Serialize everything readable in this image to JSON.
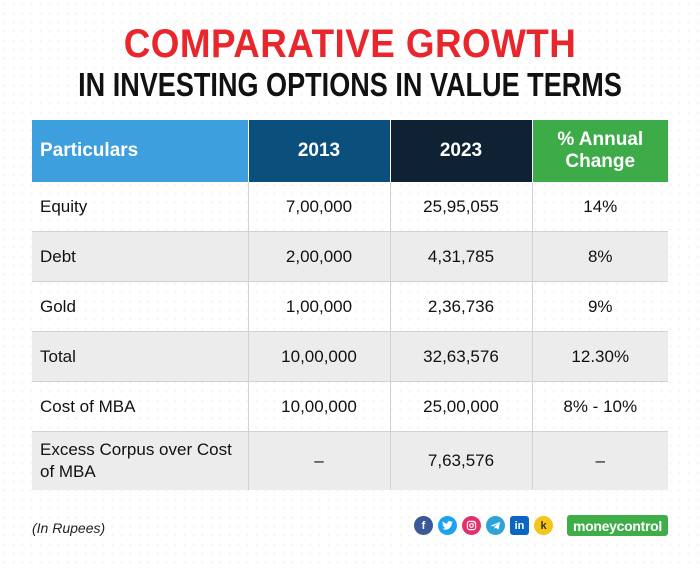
{
  "title": {
    "line1": "COMPARATIVE GROWTH",
    "line2": "IN INVESTING OPTIONS IN VALUE TERMS"
  },
  "colors": {
    "title_red": "#e8262b",
    "header_particulars": "#3d9fdd",
    "header_2013": "#0b4f7c",
    "header_2023": "#0e2233",
    "header_change": "#3dab48"
  },
  "chart_data": {
    "type": "table",
    "columns": [
      "Particulars",
      "2013",
      "2023",
      "% Annual Change"
    ],
    "rows": [
      [
        "Equity",
        "7,00,000",
        "25,95,055",
        "14%"
      ],
      [
        "Debt",
        "2,00,000",
        "4,31,785",
        "8%"
      ],
      [
        "Gold",
        "1,00,000",
        "2,36,736",
        "9%"
      ],
      [
        "Total",
        "10,00,000",
        "32,63,576",
        "12.30%"
      ],
      [
        "Cost of MBA",
        "10,00,000",
        "25,00,000",
        "8% - 10%"
      ],
      [
        "Excess Corpus over Cost of MBA",
        "–",
        "7,63,576",
        "–"
      ]
    ]
  },
  "table": {
    "header": {
      "col0": "Particulars",
      "col1": "2013",
      "col2": "2023",
      "col3": "% Annual Change"
    },
    "rows": [
      {
        "label": "Equity",
        "y2013": "7,00,000",
        "y2023": "25,95,055",
        "change": "14%"
      },
      {
        "label": "Debt",
        "y2013": "2,00,000",
        "y2023": "4,31,785",
        "change": "8%"
      },
      {
        "label": "Gold",
        "y2013": "1,00,000",
        "y2023": "2,36,736",
        "change": "9%"
      },
      {
        "label": "Total",
        "y2013": "10,00,000",
        "y2023": "32,63,576",
        "change": "12.30%"
      },
      {
        "label": "Cost of MBA",
        "y2013": "10,00,000",
        "y2023": "25,00,000",
        "change": "8% - 10%"
      },
      {
        "label": "Excess Corpus over Cost of MBA",
        "y2013": "–",
        "y2023": "7,63,576",
        "change": "–"
      }
    ]
  },
  "footer": {
    "note": "(In Rupees)",
    "brand": "moneycontrol",
    "social_icons": [
      "facebook-icon",
      "twitter-icon",
      "instagram-icon",
      "telegram-icon",
      "linkedin-icon",
      "koo-icon"
    ]
  }
}
